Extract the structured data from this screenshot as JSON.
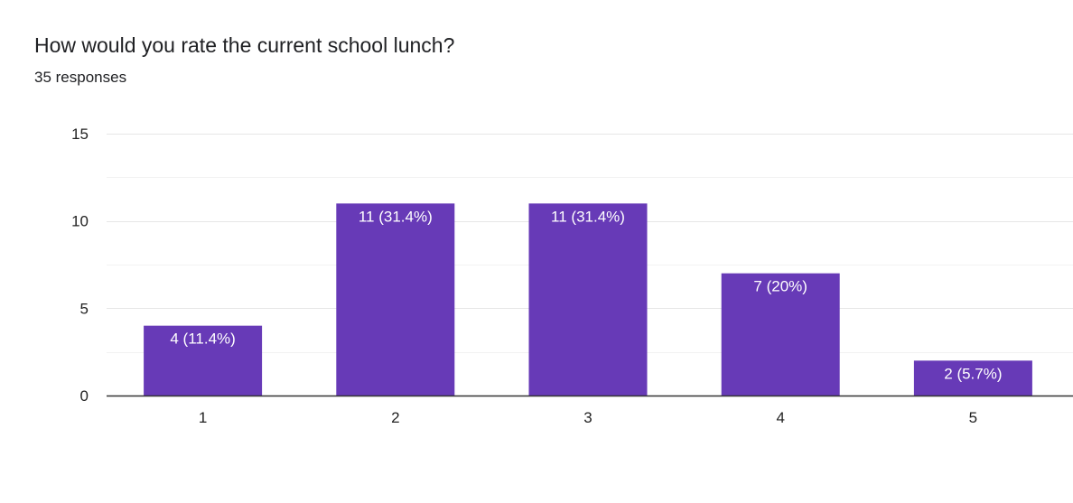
{
  "question": {
    "title": "How would you rate the current school lunch?",
    "responses": "35 responses"
  },
  "chart_data": {
    "type": "bar",
    "categories": [
      "1",
      "2",
      "3",
      "4",
      "5"
    ],
    "values": [
      4,
      11,
      11,
      7,
      2
    ],
    "data_labels": [
      "4 (11.4%)",
      "11 (31.4%)",
      "11 (31.4%)",
      "7 (20%)",
      "2 (5.7%)"
    ],
    "title": "",
    "xlabel": "",
    "ylabel": "",
    "ylim": [
      0,
      15
    ],
    "yticks": [
      0,
      5,
      10,
      15
    ],
    "grid": true,
    "legend": "none",
    "bar_color": "#673ab7",
    "grid_color": "#e8e8e8",
    "axis_color": "#333333"
  }
}
